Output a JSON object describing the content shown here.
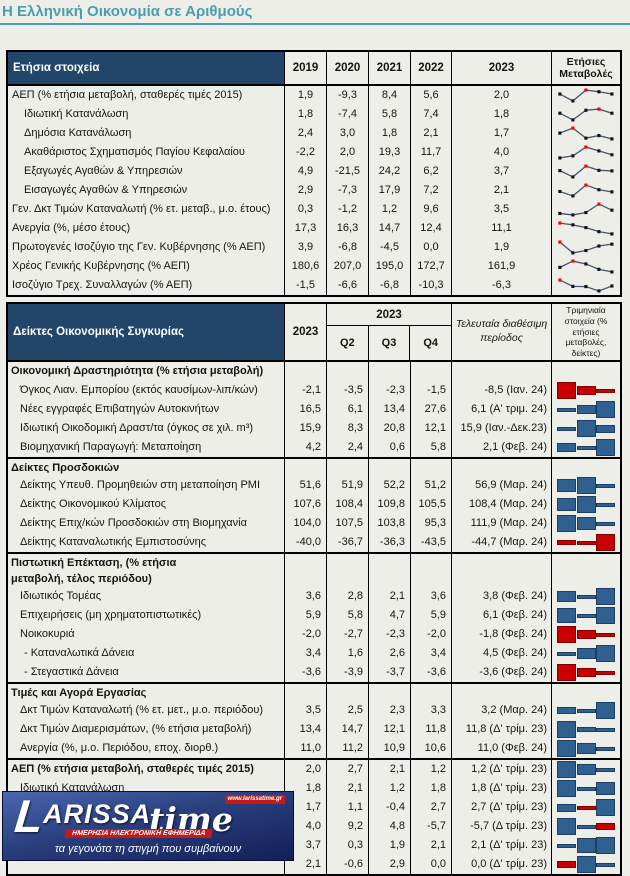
{
  "page": {
    "title": "Η Ελληνική Οικονομία σε Αριθμούς"
  },
  "colors": {
    "accent_teal": "#4C9CB0",
    "header_blue": "#214669",
    "bar_blue": "#2F608F",
    "bar_red": "#C80000",
    "spark_line": "#44546A",
    "spark_marker": "#141414",
    "spark_max_marker": "#FF0000"
  },
  "annual_table": {
    "header": {
      "label": "Ετήσια στοιχεία",
      "years": [
        "2019",
        "2020",
        "2021",
        "2022",
        "2023"
      ],
      "changes": "Ετήσιες Μεταβολές"
    },
    "rows": [
      {
        "label": "ΑΕΠ (% ετήσια μεταβολή, σταθερές τιμές 2015)",
        "indent": 0,
        "values": [
          "1,9",
          "-9,3",
          "8,4",
          "5,6",
          "2,0"
        ],
        "spark": [
          1.9,
          -9.3,
          8.4,
          5.6,
          2.0
        ]
      },
      {
        "label": "Ιδιωτική Κατανάλωση",
        "indent": 1,
        "values": [
          "1,8",
          "-7,4",
          "5,8",
          "7,4",
          "1,8"
        ],
        "spark": [
          1.8,
          -7.4,
          5.8,
          7.4,
          1.8
        ]
      },
      {
        "label": "Δημόσια Κατανάλωση",
        "indent": 1,
        "values": [
          "2,4",
          "3,0",
          "1,8",
          "2,1",
          "1,7"
        ],
        "spark": [
          2.4,
          3.0,
          1.8,
          2.1,
          1.7
        ]
      },
      {
        "label": "Ακαθάριστος Σχηματισμός Παγίου Κεφαλαίου",
        "indent": 1,
        "values": [
          "-2,2",
          "2,0",
          "19,3",
          "11,7",
          "4,0"
        ],
        "spark": [
          -2.2,
          2.0,
          19.3,
          11.7,
          4.0
        ]
      },
      {
        "label": "Εξαγωγές Αγαθών & Υπηρεσιών",
        "indent": 1,
        "values": [
          "4,9",
          "-21,5",
          "24,2",
          "6,2",
          "3,7"
        ],
        "spark": [
          4.9,
          -21.5,
          24.2,
          6.2,
          3.7
        ]
      },
      {
        "label": "Εισαγωγές Αγαθών & Υπηρεσιών",
        "indent": 1,
        "values": [
          "2,9",
          "-7,3",
          "17,9",
          "7,2",
          "2,1"
        ],
        "spark": [
          2.9,
          -7.3,
          17.9,
          7.2,
          2.1
        ]
      },
      {
        "label": "Γεν. Δκτ Τιμών Καταναλωτή (% ετ. μεταβ., μ.ο. έτους)",
        "indent": 0,
        "values": [
          "0,3",
          "-1,2",
          "1,2",
          "9,6",
          "3,5"
        ],
        "spark": [
          0.3,
          -1.2,
          1.2,
          9.6,
          3.5
        ]
      },
      {
        "label": "Ανεργία (%, μέσο έτους)",
        "indent": 0,
        "values": [
          "17,3",
          "16,3",
          "14,7",
          "12,4",
          "11,1"
        ],
        "spark": [
          17.3,
          16.3,
          14.7,
          12.4,
          11.1
        ]
      },
      {
        "label": "Πρωτογενές Ισοζύγιο της Γεν. Κυβέρνησης (% ΑΕΠ)",
        "indent": 0,
        "values": [
          "3,9",
          "-6,8",
          "-4,5",
          "0,0",
          "1,9"
        ],
        "spark": [
          3.9,
          -6.8,
          -4.5,
          0.0,
          1.9
        ]
      },
      {
        "label": "Χρέος Γενικής Κυβέρνησης (% ΑΕΠ)",
        "indent": 0,
        "values": [
          "180,6",
          "207,0",
          "195,0",
          "172,7",
          "161,9"
        ],
        "spark": [
          180.6,
          207.0,
          195.0,
          172.7,
          161.9
        ]
      },
      {
        "label": "Ισοζύγιο Τρεχ. Συναλλαγών (% ΑΕΠ)",
        "indent": 0,
        "values": [
          "-1,5",
          "-6,6",
          "-6,8",
          "-10,3",
          "-6,3"
        ],
        "spark": [
          -1.5,
          -6.6,
          -6.8,
          -10.3,
          -6.3
        ]
      }
    ]
  },
  "quarterly_table": {
    "header": {
      "label": "Δείκτες Οικονομικής Συγκυρίας",
      "year": "2023",
      "group_year": "2023",
      "quarters": [
        "Q2",
        "Q3",
        "Q4"
      ],
      "latest": "Τελευταία διαθέσιμη περίοδος",
      "note": "Τριμηνιαία στοιχεία (% ετήσιες μεταβολές, δείκτες)"
    },
    "rows": [
      {
        "type": "section",
        "label": "Οικονομική Δραστηριότητα (% ετήσια μεταβολή)",
        "sep": false
      },
      {
        "type": "data",
        "label": "Όγκος Λιαν. Εμπορίου (εκτός καυσίμων-λιπ/κών)",
        "indent": 1,
        "values": [
          "-2,1",
          "-3,5",
          "-2,3",
          "-1,5"
        ],
        "latest": "-8,5 (Ιαν. 24)",
        "bars": [
          -3.5,
          -2.3,
          -1.5
        ]
      },
      {
        "type": "data",
        "label": "Νέες εγγραφές Επιβατηγών Αυτοκινήτων",
        "indent": 1,
        "values": [
          "16,5",
          "6,1",
          "13,4",
          "27,6"
        ],
        "latest": "6,1 (Α' τριμ. 24)",
        "bars": [
          6.1,
          13.4,
          27.6
        ]
      },
      {
        "type": "data",
        "label": "Ιδιωτική Οικοδομική Δραστ/τα (όγκος σε χιλ. m³)",
        "indent": 1,
        "values": [
          "15,9",
          "8,3",
          "20,8",
          "12,1"
        ],
        "latest": "15,9 (Ιαν.-Δεκ.23)",
        "bars": [
          8.3,
          20.8,
          12.1
        ]
      },
      {
        "type": "data",
        "label": "Βιομηχανική Παραγωγή: Μεταποίηση",
        "indent": 1,
        "values": [
          "4,2",
          "2,4",
          "0,6",
          "5,8"
        ],
        "latest": "2,1 (Φεβ. 24)",
        "bars": [
          2.4,
          0.6,
          5.8
        ]
      },
      {
        "type": "section",
        "label": "Δείκτες Προσδοκιών",
        "sep": true
      },
      {
        "type": "data",
        "label": "Δείκτης Υπευθ. Προμηθειών στη μεταποίηση PMI",
        "indent": 1,
        "values": [
          "51,6",
          "51,9",
          "52,2",
          "51,2"
        ],
        "latest": "56,9 (Μαρ. 24)",
        "bars": [
          51.9,
          52.2,
          51.2
        ]
      },
      {
        "type": "data",
        "label": "Δείκτης Οικονομικού Κλίματος",
        "indent": 1,
        "values": [
          "107,6",
          "108,4",
          "109,8",
          "105,5"
        ],
        "latest": "108,4 (Μαρ. 24)",
        "bars": [
          108.4,
          109.8,
          105.5
        ]
      },
      {
        "type": "data",
        "label": "Δείκτης Επιχ/κών Προσδοκιών στη Βιομηχανία",
        "indent": 1,
        "values": [
          "104,0",
          "107,5",
          "103,8",
          "95,3"
        ],
        "latest": "111,9 (Μαρ. 24)",
        "bars": [
          107.5,
          103.8,
          95.3
        ]
      },
      {
        "type": "data",
        "label": "Δείκτης Καταναλωτικής Εμπιστοσύνης",
        "indent": 1,
        "values": [
          "-40,0",
          "-36,7",
          "-36,3",
          "-43,5"
        ],
        "latest": "-44,7 (Μαρ. 24)",
        "bars": [
          -36.7,
          -36.3,
          -43.5
        ]
      },
      {
        "type": "section",
        "label": "Πιστωτική Επέκταση, (% ετήσια μεταβολή, τέλος περιόδου)",
        "sep": true,
        "tall": true
      },
      {
        "type": "data",
        "label": "Ιδιωτικός Τομέας",
        "indent": 1,
        "values": [
          "3,6",
          "2,8",
          "2,1",
          "3,6"
        ],
        "latest": "3,8 (Φεβ. 24)",
        "bars": [
          2.8,
          2.1,
          3.6
        ]
      },
      {
        "type": "data",
        "label": "Επιχειρήσεις (μη χρηματοπιστωτικές)",
        "indent": 1,
        "values": [
          "5,9",
          "5,8",
          "4,7",
          "5,9"
        ],
        "latest": "6,1 (Φεβ. 24)",
        "bars": [
          5.8,
          4.7,
          5.9
        ]
      },
      {
        "type": "data",
        "label": "Νοικοκυριά",
        "indent": 1,
        "values": [
          "-2,0",
          "-2,7",
          "-2,3",
          "-2,0"
        ],
        "latest": "-1,8 (Φεβ. 24)",
        "bars": [
          -2.7,
          -2.3,
          -2.0
        ]
      },
      {
        "type": "data",
        "label": "- Καταναλωτικά Δάνεια",
        "indent": 2,
        "values": [
          "3,4",
          "1,6",
          "2,6",
          "3,4"
        ],
        "latest": "4,5 (Φεβ. 24)",
        "bars": [
          1.6,
          2.6,
          3.4
        ]
      },
      {
        "type": "data",
        "label": "- Στεγαστικά Δάνεια",
        "indent": 2,
        "values": [
          "-3,6",
          "-3,9",
          "-3,7",
          "-3,6"
        ],
        "latest": "-3,6 (Φεβ. 24)",
        "bars": [
          -3.9,
          -3.7,
          -3.6
        ]
      },
      {
        "type": "section",
        "label": "Τιμές και Αγορά Εργασίας",
        "sep": true
      },
      {
        "type": "data",
        "label": "Δκτ Τιμών Καταναλωτή (% ετ. μετ., μ.ο. περιόδου)",
        "indent": 1,
        "values": [
          "3,5",
          "2,5",
          "2,3",
          "3,3"
        ],
        "latest": "3,2 (Μαρ. 24)",
        "bars": [
          2.5,
          2.3,
          3.3
        ]
      },
      {
        "type": "data",
        "label": "Δκτ Τιμών Διαμερισμάτων, (% ετήσια μεταβολή)",
        "indent": 1,
        "values": [
          "13,4",
          "14,7",
          "12,1",
          "11,8"
        ],
        "latest": "11,8 (Δ' τρίμ. 23)",
        "bars": [
          14.7,
          12.1,
          11.8
        ]
      },
      {
        "type": "data",
        "label": "Ανεργία (%, μ.ο. Περιόδου, εποχ. διορθ.)",
        "indent": 1,
        "values": [
          "11,0",
          "11,2",
          "10,9",
          "10,6"
        ],
        "latest": "11,0 (Φεβ. 24)",
        "bars": [
          11.2,
          10.9,
          10.6
        ]
      },
      {
        "type": "data",
        "label": "ΑΕΠ (% ετήσια μεταβολή, σταθερές τιμές 2015)",
        "indent": 0,
        "bold": true,
        "sep": true,
        "values": [
          "2,0",
          "2,7",
          "2,1",
          "1,2"
        ],
        "latest": "1,2 (Δ' τρίμ. 23)",
        "bars": [
          2.7,
          2.1,
          1.2
        ]
      },
      {
        "type": "data",
        "label": "Ιδιωτική Κατανάλωση",
        "indent": 1,
        "values": [
          "1,8",
          "2,1",
          "1,2",
          "1,8"
        ],
        "latest": "1,8 (Δ' τρίμ. 23)",
        "bars": [
          2.1,
          1.2,
          1.8
        ]
      },
      {
        "type": "data",
        "label": "",
        "indent": 1,
        "values": [
          "1,7",
          "1,1",
          "-0,4",
          "2,7"
        ],
        "latest": "2,7 (Δ' τρίμ. 23)",
        "bars": [
          1.1,
          -0.4,
          2.7
        ]
      },
      {
        "type": "data",
        "label": "",
        "indent": 1,
        "values": [
          "4,0",
          "9,2",
          "4,8",
          "-5,7"
        ],
        "latest": "-5,7 (Δ τρίμ. 23)",
        "bars": [
          9.2,
          4.8,
          -5.7
        ]
      },
      {
        "type": "data",
        "label": "",
        "indent": 1,
        "values": [
          "3,7",
          "0,3",
          "1,9",
          "2,1"
        ],
        "latest": "2,1 (Δ' τρίμ. 23)",
        "bars": [
          0.3,
          1.9,
          2.1
        ]
      },
      {
        "type": "data",
        "label": "",
        "indent": 1,
        "values": [
          "2,1",
          "-0,6",
          "2,9",
          "0,0"
        ],
        "latest": "0,0 (Δ' τρίμ. 23)",
        "bars": [
          -0.6,
          2.9,
          0.0
        ]
      }
    ]
  },
  "logo": {
    "initial": "L",
    "main": "ARISSA",
    "suffix": "time",
    "url": "www.larissatime.gr",
    "subtitle": "ΗΜΕΡΗΣΙΑ ΗΛΕΚΤΡΟΝΙΚΗ ΕΦΗΜΕΡΙΔΑ",
    "tagline": "τα γεγονότα τη στιγμή που συμβαίνουν"
  }
}
